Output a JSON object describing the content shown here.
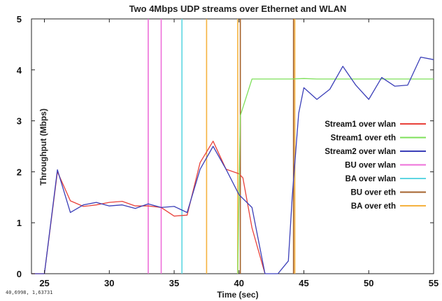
{
  "chart_data": {
    "type": "line",
    "title": "Two 4Mbps UDP streams over Ethernet and WLAN",
    "xlabel": "Time (sec)",
    "ylabel": "Throughput (Mbps)",
    "xlim": [
      24,
      55
    ],
    "ylim": [
      0,
      5
    ],
    "xticks": [
      25,
      30,
      35,
      40,
      45,
      50,
      55
    ],
    "yticks": [
      0,
      1,
      2,
      3,
      4,
      5
    ],
    "grid": false,
    "legend_position": "right",
    "series": [
      {
        "name": "Stream1 over wlan",
        "color": "#e8413a",
        "x": [
          24,
          25,
          26,
          27,
          28,
          29,
          30,
          31,
          32,
          33,
          34,
          35,
          36,
          37,
          38,
          39,
          40,
          40.3,
          41,
          42
        ],
        "y": [
          0,
          0,
          2.0,
          1.43,
          1.32,
          1.35,
          1.4,
          1.42,
          1.33,
          1.33,
          1.3,
          1.13,
          1.15,
          2.18,
          2.6,
          2.05,
          1.96,
          1.88,
          0.9,
          0
        ]
      },
      {
        "name": "Stream1 over eth",
        "color": "#7ee05a",
        "x": [
          39.9,
          40.1,
          41,
          42,
          43,
          44,
          45,
          46,
          47,
          48,
          49,
          50,
          51,
          52,
          53,
          54,
          55
        ],
        "y": [
          0,
          3.1,
          3.82,
          3.82,
          3.82,
          3.82,
          3.83,
          3.82,
          3.82,
          3.82,
          3.82,
          3.82,
          3.82,
          3.82,
          3.82,
          3.82,
          3.82
        ]
      },
      {
        "name": "Stream2 over wlan",
        "color": "#3b3fb8",
        "x": [
          24,
          25,
          26,
          27,
          28,
          29,
          30,
          31,
          32,
          33,
          34,
          35,
          36,
          37,
          38,
          39,
          40,
          41,
          42,
          43,
          43.8,
          44.1,
          44.6,
          45,
          46,
          47,
          48,
          49,
          50,
          51,
          52,
          53,
          54,
          55
        ],
        "y": [
          0,
          0,
          2.04,
          1.2,
          1.35,
          1.4,
          1.33,
          1.35,
          1.28,
          1.37,
          1.3,
          1.32,
          1.2,
          2.05,
          2.5,
          2.05,
          1.55,
          1.3,
          0,
          0,
          0.25,
          1.5,
          3.15,
          3.65,
          3.42,
          3.62,
          4.07,
          3.7,
          3.42,
          3.85,
          3.68,
          3.7,
          4.25,
          4.2
        ]
      },
      {
        "name": "BU over wlan",
        "color": "#ee6fd9",
        "vlines": [
          33,
          34
        ]
      },
      {
        "name": "BA over wlan",
        "color": "#5fd6e2",
        "vlines": [
          35.6
        ]
      },
      {
        "name": "BU over eth",
        "color": "#a4612b",
        "vlines": [
          40.1,
          44.2
        ]
      },
      {
        "name": "BA over eth",
        "color": "#f5b23f",
        "vlines": [
          37.5,
          39.9,
          44.3
        ]
      }
    ]
  },
  "coord_readout": "40,6998, 1,63731"
}
